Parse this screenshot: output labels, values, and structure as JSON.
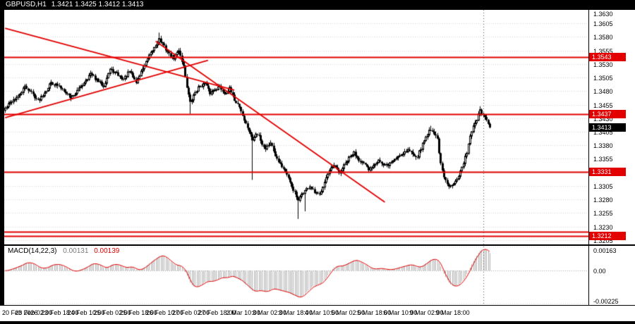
{
  "header": {
    "symbol_timeframe": "GBPUSD,H1",
    "ohlc": "1.3421 1.3425 1.3412 1.3413"
  },
  "colors": {
    "accent_red": "#e30000",
    "grid": "#d8d8d8",
    "candle": "#000000",
    "histogram": "#b0b0b0",
    "panel_bg": "#ffffff",
    "frame_bg": "#000000",
    "macd_value_gray": "#7a7a7a"
  },
  "chart_data": {
    "type": "candlestick",
    "symbol": "GBPUSD",
    "timeframe": "H1",
    "bar_count": 297,
    "price_axis": {
      "max": 1.363,
      "min": 1.3197,
      "ticks": [
        "1.3630",
        "1.3605",
        "1.3580",
        "1.3555",
        "1.3530",
        "1.3505",
        "1.3480",
        "1.3455",
        "1.3430",
        "1.3405",
        "1.3380",
        "1.3355",
        "1.3330",
        "1.3305",
        "1.3280",
        "1.3255",
        "1.3230",
        "1.3205"
      ]
    },
    "time_axis": {
      "first_bar": 2,
      "bar_step": 16,
      "labels": [
        "20 Feb 2026",
        "23 Feb 02:00",
        "23 Feb 18:00",
        "24 Feb 10:00",
        "25 Feb 02:00",
        "25 Feb 18:00",
        "26 Feb 10:00",
        "27 Feb 02:00",
        "27 Feb 18:00",
        "2 Mar 10:00",
        "3 Mar 02:00",
        "3 Mar 18:00",
        "4 Mar 10:00",
        "5 Mar 02:00",
        "5 Mar 18:00",
        "6 Mar 10:00",
        "9 Mar 02:00",
        "9 Mar 18:00"
      ]
    },
    "close_anchors": [
      [
        0,
        1.3448
      ],
      [
        4,
        1.3462
      ],
      [
        8,
        1.347
      ],
      [
        12,
        1.3488
      ],
      [
        16,
        1.3478
      ],
      [
        20,
        1.3462
      ],
      [
        24,
        1.3478
      ],
      [
        28,
        1.3496
      ],
      [
        32,
        1.349
      ],
      [
        36,
        1.3482
      ],
      [
        40,
        1.3468
      ],
      [
        44,
        1.348
      ],
      [
        48,
        1.3496
      ],
      [
        52,
        1.3512
      ],
      [
        56,
        1.35
      ],
      [
        60,
        1.349
      ],
      [
        64,
        1.352
      ],
      [
        68,
        1.3512
      ],
      [
        72,
        1.3502
      ],
      [
        76,
        1.3516
      ],
      [
        80,
        1.3496
      ],
      [
        84,
        1.3522
      ],
      [
        88,
        1.3544
      ],
      [
        92,
        1.3566
      ],
      [
        94,
        1.3576
      ],
      [
        97,
        1.3562
      ],
      [
        100,
        1.3548
      ],
      [
        103,
        1.3541
      ],
      [
        106,
        1.3556
      ],
      [
        109,
        1.3526
      ],
      [
        111,
        1.3488
      ],
      [
        113,
        1.3458
      ],
      [
        116,
        1.3478
      ],
      [
        119,
        1.349
      ],
      [
        122,
        1.3494
      ],
      [
        125,
        1.3476
      ],
      [
        128,
        1.3484
      ],
      [
        131,
        1.3488
      ],
      [
        134,
        1.3476
      ],
      [
        137,
        1.3484
      ],
      [
        140,
        1.3464
      ],
      [
        143,
        1.3452
      ],
      [
        146,
        1.3426
      ],
      [
        149,
        1.3406
      ],
      [
        151,
        1.339
      ],
      [
        153,
        1.34
      ],
      [
        155,
        1.3398
      ],
      [
        157,
        1.3382
      ],
      [
        159,
        1.3374
      ],
      [
        162,
        1.3386
      ],
      [
        165,
        1.3362
      ],
      [
        168,
        1.3346
      ],
      [
        171,
        1.3332
      ],
      [
        174,
        1.331
      ],
      [
        177,
        1.3292
      ],
      [
        179,
        1.3276
      ],
      [
        181,
        1.329
      ],
      [
        183,
        1.3296
      ],
      [
        186,
        1.3304
      ],
      [
        189,
        1.3292
      ],
      [
        192,
        1.3288
      ],
      [
        195,
        1.3314
      ],
      [
        198,
        1.3332
      ],
      [
        201,
        1.3342
      ],
      [
        204,
        1.3328
      ],
      [
        207,
        1.3342
      ],
      [
        210,
        1.3356
      ],
      [
        213,
        1.3366
      ],
      [
        216,
        1.3354
      ],
      [
        219,
        1.3346
      ],
      [
        222,
        1.3334
      ],
      [
        225,
        1.3344
      ],
      [
        228,
        1.3354
      ],
      [
        231,
        1.3342
      ],
      [
        234,
        1.3344
      ],
      [
        237,
        1.3352
      ],
      [
        240,
        1.336
      ],
      [
        243,
        1.3366
      ],
      [
        246,
        1.3372
      ],
      [
        249,
        1.3364
      ],
      [
        252,
        1.336
      ],
      [
        255,
        1.3382
      ],
      [
        258,
        1.3402
      ],
      [
        260,
        1.341
      ],
      [
        262,
        1.3402
      ],
      [
        264,
        1.3392
      ],
      [
        266,
        1.3344
      ],
      [
        268,
        1.332
      ],
      [
        271,
        1.3302
      ],
      [
        274,
        1.3312
      ],
      [
        277,
        1.3324
      ],
      [
        280,
        1.3346
      ],
      [
        282,
        1.3368
      ],
      [
        284,
        1.3398
      ],
      [
        286,
        1.3414
      ],
      [
        288,
        1.3428
      ],
      [
        290,
        1.3443
      ],
      [
        292,
        1.3436
      ],
      [
        294,
        1.3424
      ],
      [
        296,
        1.3413
      ]
    ],
    "spikes": [
      {
        "bar": 94,
        "high": 1.3588
      },
      {
        "bar": 113,
        "low": 1.3438
      },
      {
        "bar": 151,
        "low": 1.3316
      },
      {
        "bar": 179,
        "low": 1.3244
      },
      {
        "bar": 183,
        "low": 1.3258
      },
      {
        "bar": 260,
        "high": 1.3416
      },
      {
        "bar": 290,
        "high": 1.3452
      }
    ],
    "levels": [
      {
        "price": 1.3543,
        "label": "1.3543"
      },
      {
        "price": 1.3437,
        "label": "1.3437"
      },
      {
        "price": 1.3331,
        "label": "1.3331"
      },
      {
        "price": 1.3212,
        "label": "1.3212"
      }
    ],
    "extra_level_lines": [
      1.322
    ],
    "trend_lines": [
      {
        "b1": 0,
        "p1": 1.3596,
        "b2": 140,
        "p2": 1.3482
      },
      {
        "b1": 0,
        "p1": 1.3431,
        "b2": 124,
        "p2": 1.3537
      },
      {
        "b1": 92,
        "p1": 1.3572,
        "b2": 232,
        "p2": 1.3275
      }
    ],
    "current_price": {
      "value": 1.3413,
      "label": "1.3413"
    },
    "separator_bar": 292,
    "macd": {
      "label": "MACD(14,22,3)",
      "fast": 14,
      "slow": 22,
      "signal_period": 3,
      "value_main": "0.00131",
      "value_signal": "0.00139",
      "scale_top_label": "0.00163",
      "scale_zero_label": "0.00",
      "scale_bottom_label": "-0.00225",
      "scale_max": 0.0017,
      "scale_min": -0.00235
    }
  }
}
